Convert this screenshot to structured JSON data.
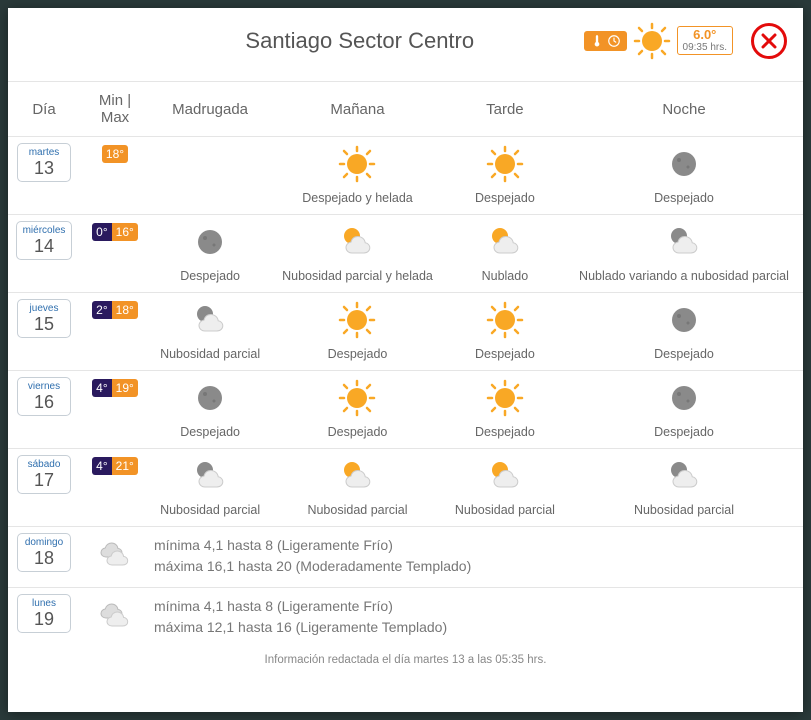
{
  "header": {
    "title": "Santiago Sector Centro",
    "current_temp": "6.0°",
    "current_time": "09:35 hrs."
  },
  "columns": [
    "Día",
    "Min | Max",
    "Madrugada",
    "Mañana",
    "Tarde",
    "Noche"
  ],
  "days": [
    {
      "weekday": "martes",
      "num": "13",
      "min": null,
      "max": "18°",
      "periods": [
        null,
        {
          "icon": "sun",
          "desc": "Despejado y helada"
        },
        {
          "icon": "sun",
          "desc": "Despejado"
        },
        {
          "icon": "moon",
          "desc": "Despejado"
        }
      ]
    },
    {
      "weekday": "miércoles",
      "num": "14",
      "min": "0°",
      "max": "16°",
      "periods": [
        {
          "icon": "moon",
          "desc": "Despejado"
        },
        {
          "icon": "suncloud",
          "desc": "Nubosidad parcial y helada"
        },
        {
          "icon": "suncloud",
          "desc": "Nublado"
        },
        {
          "icon": "mooncloud",
          "desc": "Nublado variando a nubosidad parcial"
        }
      ]
    },
    {
      "weekday": "jueves",
      "num": "15",
      "min": "2°",
      "max": "18°",
      "periods": [
        {
          "icon": "mooncloud",
          "desc": "Nubosidad parcial"
        },
        {
          "icon": "sun",
          "desc": "Despejado"
        },
        {
          "icon": "sun",
          "desc": "Despejado"
        },
        {
          "icon": "moon",
          "desc": "Despejado"
        }
      ]
    },
    {
      "weekday": "viernes",
      "num": "16",
      "min": "4°",
      "max": "19°",
      "periods": [
        {
          "icon": "moon",
          "desc": "Despejado"
        },
        {
          "icon": "sun",
          "desc": "Despejado"
        },
        {
          "icon": "sun",
          "desc": "Despejado"
        },
        {
          "icon": "moon",
          "desc": "Despejado"
        }
      ]
    },
    {
      "weekday": "sábado",
      "num": "17",
      "min": "4°",
      "max": "21°",
      "periods": [
        {
          "icon": "mooncloud",
          "desc": "Nubosidad parcial"
        },
        {
          "icon": "suncloud",
          "desc": "Nubosidad parcial"
        },
        {
          "icon": "suncloud",
          "desc": "Nubosidad parcial"
        },
        {
          "icon": "mooncloud",
          "desc": "Nubosidad parcial"
        }
      ]
    }
  ],
  "summaries": [
    {
      "weekday": "domingo",
      "num": "18",
      "icon": "clouds",
      "line1": "mínima 4,1 hasta 8 (Ligeramente Frío)",
      "line2": "máxima 16,1 hasta 20 (Moderadamente Templado)"
    },
    {
      "weekday": "lunes",
      "num": "19",
      "icon": "clouds",
      "line1": "mínima 4,1 hasta 8 (Ligeramente Frío)",
      "line2": "máxima 12,1 hasta 16 (Ligeramente Templado)"
    }
  ],
  "footer": "Información redactada el día martes 13 a las 05:35 hrs.",
  "colors": {
    "accent": "#f29326",
    "close": "#e30b0b",
    "min": "#2a1a5e"
  }
}
